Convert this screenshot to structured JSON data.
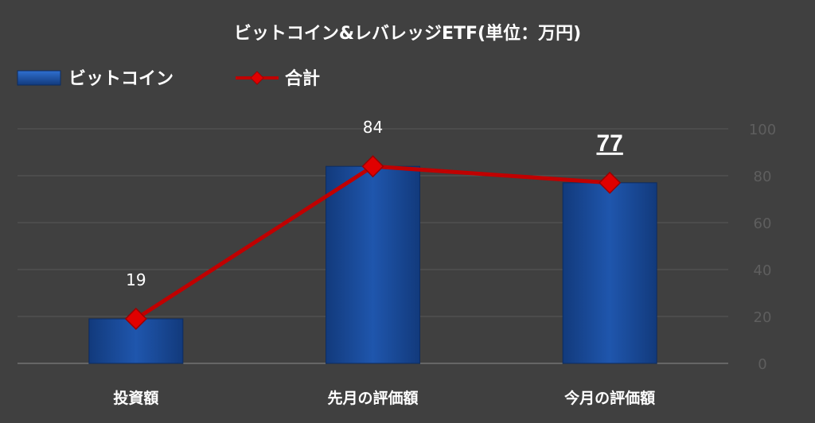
{
  "chart_data": {
    "type": "bar",
    "title": "ビットコイン&レバレッジETF(単位：万円)",
    "categories": [
      "投資額",
      "先月の評価額",
      "今月の評価額"
    ],
    "series": [
      {
        "name": "ビットコイン",
        "type": "bar",
        "values": [
          19,
          84,
          77
        ],
        "color": "#1a4a99"
      },
      {
        "name": "合計",
        "type": "line",
        "values": [
          19,
          84,
          77
        ],
        "color": "#c00000"
      }
    ],
    "data_labels": [
      "19",
      "84",
      "77"
    ],
    "highlighted_label_index": 2,
    "y_ticks": [
      "0",
      "20",
      "40",
      "60",
      "80",
      "100"
    ],
    "ylim": [
      0,
      100
    ],
    "y_axis_side": "right",
    "grid": true,
    "legend_position": "top-left"
  }
}
